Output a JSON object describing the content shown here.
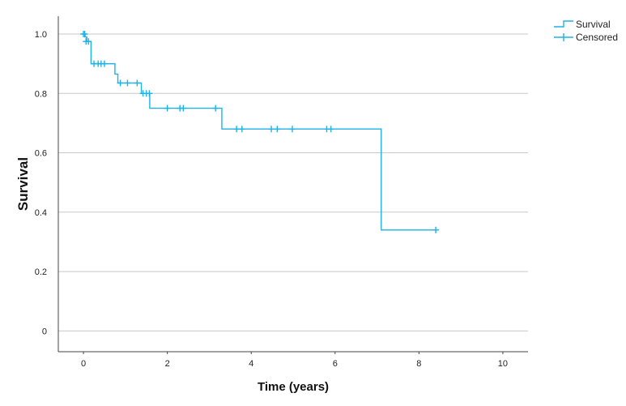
{
  "chart_data": {
    "type": "line",
    "xlabel": "Time (years)",
    "ylabel": "Survival",
    "xlim": [
      -0.6,
      10.6
    ],
    "ylim": [
      -0.07,
      1.06
    ],
    "x_ticks": [
      0,
      2,
      4,
      6,
      8,
      10
    ],
    "x_tick_labels": [
      "0",
      "2",
      "4",
      "6",
      "8",
      "10"
    ],
    "y_ticks": [
      0,
      0.2,
      0.4,
      0.6,
      0.8,
      1.0
    ],
    "y_tick_labels": [
      "0",
      "0.2",
      "0.4",
      "0.6",
      "0.8",
      "1.0"
    ],
    "grid": "horizontal",
    "legend_position": "top-right",
    "color": "#1fb2e6",
    "series": [
      {
        "name": "Survival",
        "kind": "step",
        "x": [
          0,
          0.04,
          0.08,
          0.18,
          0.75,
          0.82,
          1.38,
          1.58,
          3.3,
          7.1,
          8.4
        ],
        "y": [
          1.0,
          0.99,
          0.975,
          0.9,
          0.865,
          0.835,
          0.8,
          0.75,
          0.68,
          0.34,
          0.34
        ]
      },
      {
        "name": "Censored",
        "kind": "marker",
        "x": [
          0.0,
          0.03,
          0.06,
          0.12,
          0.25,
          0.35,
          0.42,
          0.5,
          0.88,
          1.05,
          1.28,
          1.42,
          1.5,
          1.57,
          2.0,
          2.3,
          2.38,
          3.15,
          3.65,
          3.78,
          4.48,
          4.62,
          4.98,
          5.8,
          5.9,
          8.4
        ],
        "y": [
          1.0,
          1.0,
          0.975,
          0.975,
          0.9,
          0.9,
          0.9,
          0.9,
          0.835,
          0.835,
          0.835,
          0.8,
          0.8,
          0.8,
          0.75,
          0.75,
          0.75,
          0.75,
          0.68,
          0.68,
          0.68,
          0.68,
          0.68,
          0.68,
          0.68,
          0.34
        ]
      }
    ]
  }
}
